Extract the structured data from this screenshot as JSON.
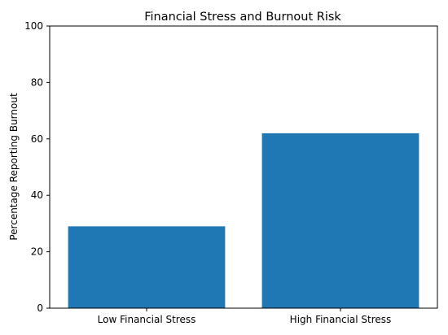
{
  "chart_data": {
    "type": "bar",
    "title": "Financial Stress and Burnout Risk",
    "xlabel": "",
    "ylabel": "Percentage Reporting Burnout",
    "categories": [
      "Low Financial Stress",
      "High Financial Stress"
    ],
    "values": [
      29,
      62
    ],
    "ylim": [
      0,
      100
    ],
    "yticks": [
      0,
      20,
      40,
      60,
      80,
      100
    ],
    "bar_color": "#1f77b4",
    "grid": false,
    "legend": "none"
  }
}
